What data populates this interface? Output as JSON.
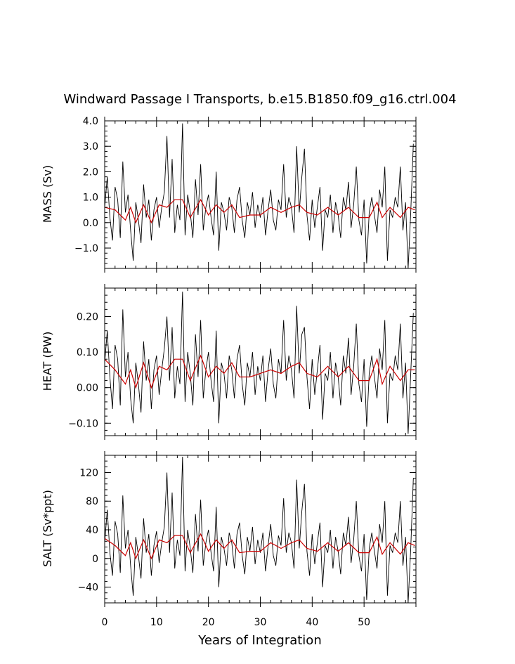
{
  "chart_data": [
    {
      "type": "line",
      "title": "Windward Passage I Transports, b.e15.B1850.f09_g16.ctrl.004",
      "xlabel": "Years of Integration",
      "ylabel": "MASS (Sv)",
      "xlim": [
        0,
        60
      ],
      "ylim": [
        -1.8,
        4.0
      ],
      "yticks": [
        -1.0,
        0.0,
        1.0,
        2.0,
        3.0,
        4.0
      ],
      "ytick_labels": [
        "−1.0",
        "0.0",
        "1.0",
        "2.0",
        "3.0",
        "4.0"
      ],
      "grid": false,
      "series": [
        {
          "color": "#000000",
          "x": [
            0.0,
            0.5,
            1.0,
            1.5,
            2.0,
            2.5,
            3.0,
            3.5,
            4.0,
            4.5,
            5.0,
            5.5,
            6.0,
            6.5,
            7.0,
            7.5,
            8.0,
            8.5,
            9.0,
            9.5,
            10.0,
            10.5,
            11.0,
            11.5,
            12.0,
            12.5,
            13.0,
            13.5,
            14.0,
            14.5,
            15.0,
            15.5,
            16.0,
            16.5,
            17.0,
            17.5,
            18.0,
            18.5,
            19.0,
            19.5,
            20.0,
            20.5,
            21.0,
            21.5,
            22.0,
            22.5,
            23.0,
            23.5,
            24.0,
            24.5,
            25.0,
            25.5,
            26.0,
            26.5,
            27.0,
            27.5,
            28.0,
            28.5,
            29.0,
            29.5,
            30.0,
            30.5,
            31.0,
            31.5,
            32.0,
            32.5,
            33.0,
            33.5,
            34.0,
            34.5,
            35.0,
            35.5,
            36.0,
            36.5,
            37.0,
            37.5,
            38.0,
            38.5,
            39.0,
            39.5,
            40.0,
            40.5,
            41.0,
            41.5,
            42.0,
            42.5,
            43.0,
            43.5,
            44.0,
            44.5,
            45.0,
            45.5,
            46.0,
            46.5,
            47.0,
            47.5,
            48.0,
            48.5,
            49.0,
            49.5,
            50.0,
            50.5,
            51.0,
            51.5,
            52.0,
            52.5,
            53.0,
            53.5,
            54.0,
            54.5,
            55.0,
            55.5,
            56.0,
            56.5,
            57.0,
            57.5,
            58.0,
            58.5,
            59.0,
            59.5
          ],
          "values": [
            0.6,
            1.8,
            0.2,
            -0.7,
            1.4,
            0.9,
            -0.6,
            2.4,
            0.4,
            1.1,
            -0.3,
            -1.5,
            0.8,
            0.1,
            -0.8,
            1.5,
            0.2,
            0.9,
            -0.7,
            0.5,
            1.0,
            -0.2,
            0.6,
            1.2,
            3.4,
            0.2,
            2.5,
            -0.4,
            0.7,
            0.1,
            3.9,
            -0.5,
            1.1,
            0.4,
            -0.6,
            1.7,
            0.3,
            2.3,
            -0.3,
            0.6,
            1.1,
            0.2,
            -0.5,
            2.0,
            -1.1,
            0.8,
            0.4,
            -0.3,
            1.0,
            0.6,
            -0.4,
            0.9,
            1.4,
            0.1,
            -0.6,
            0.8,
            0.3,
            1.2,
            -0.2,
            0.7,
            0.2,
            1.0,
            -0.5,
            0.5,
            1.3,
            0.1,
            -0.3,
            0.9,
            0.5,
            2.3,
            0.2,
            1.0,
            0.6,
            -0.4,
            3.0,
            0.4,
            1.8,
            2.9,
            0.3,
            -0.7,
            0.9,
            -0.2,
            0.6,
            1.4,
            -1.1,
            0.5,
            0.2,
            1.1,
            -0.4,
            0.8,
            0.3,
            -0.6,
            1.0,
            0.5,
            1.6,
            -0.2,
            0.7,
            2.2,
            0.1,
            -0.5,
            0.9,
            -1.6,
            0.4,
            1.0,
            0.3,
            -0.4,
            1.3,
            0.6,
            2.2,
            -1.5,
            0.5,
            0.2,
            1.0,
            0.6,
            2.2,
            -0.3,
            0.8,
            -1.8,
            0.4,
            3.1
          ]
        },
        {
          "color": "#cc0000",
          "x": [
            0,
            2,
            4,
            5,
            6,
            7.5,
            9,
            10.5,
            12,
            13.5,
            15,
            16.5,
            18.5,
            20,
            21.5,
            23,
            24.5,
            26,
            28,
            30,
            32,
            34,
            36,
            37.5,
            39,
            41,
            43,
            45,
            47,
            49,
            51,
            52.5,
            53.5,
            55,
            57,
            58.5,
            59.8
          ],
          "values": [
            0.6,
            0.5,
            0.1,
            0.6,
            0.0,
            0.7,
            0.0,
            0.7,
            0.6,
            0.9,
            0.9,
            0.2,
            0.9,
            0.3,
            0.7,
            0.4,
            0.7,
            0.2,
            0.3,
            0.3,
            0.6,
            0.4,
            0.6,
            0.7,
            0.4,
            0.3,
            0.6,
            0.3,
            0.6,
            0.2,
            0.2,
            0.8,
            0.2,
            0.6,
            0.2,
            0.6,
            0.5
          ]
        }
      ]
    },
    {
      "type": "line",
      "ylabel": "HEAT (PW)",
      "xlim": [
        0,
        60
      ],
      "ylim": [
        -0.135,
        0.28
      ],
      "yticks": [
        -0.1,
        0.0,
        0.1,
        0.2
      ],
      "ytick_labels": [
        "−0.10",
        "0.00",
        "0.10",
        "0.20"
      ],
      "grid": false,
      "series": [
        {
          "color": "#000000",
          "x": [
            0.0,
            0.5,
            1.0,
            1.5,
            2.0,
            2.5,
            3.0,
            3.5,
            4.0,
            4.5,
            5.0,
            5.5,
            6.0,
            6.5,
            7.0,
            7.5,
            8.0,
            8.5,
            9.0,
            9.5,
            10.0,
            10.5,
            11.0,
            11.5,
            12.0,
            12.5,
            13.0,
            13.5,
            14.0,
            14.5,
            15.0,
            15.5,
            16.0,
            16.5,
            17.0,
            17.5,
            18.0,
            18.5,
            19.0,
            19.5,
            20.0,
            20.5,
            21.0,
            21.5,
            22.0,
            22.5,
            23.0,
            23.5,
            24.0,
            24.5,
            25.0,
            25.5,
            26.0,
            26.5,
            27.0,
            27.5,
            28.0,
            28.5,
            29.0,
            29.5,
            30.0,
            30.5,
            31.0,
            31.5,
            32.0,
            32.5,
            33.0,
            33.5,
            34.0,
            34.5,
            35.0,
            35.5,
            36.0,
            36.5,
            37.0,
            37.5,
            38.0,
            38.5,
            39.0,
            39.5,
            40.0,
            40.5,
            41.0,
            41.5,
            42.0,
            42.5,
            43.0,
            43.5,
            44.0,
            44.5,
            45.0,
            45.5,
            46.0,
            46.5,
            47.0,
            47.5,
            48.0,
            48.5,
            49.0,
            49.5,
            50.0,
            50.5,
            51.0,
            51.5,
            52.0,
            52.5,
            53.0,
            53.5,
            54.0,
            54.5,
            55.0,
            55.5,
            56.0,
            56.5,
            57.0,
            57.5,
            58.0,
            58.5,
            59.0,
            59.5
          ],
          "values": [
            0.07,
            0.16,
            0.03,
            -0.06,
            0.12,
            0.08,
            -0.05,
            0.22,
            0.03,
            0.1,
            -0.03,
            -0.1,
            0.07,
            0.01,
            -0.07,
            0.13,
            0.02,
            0.08,
            -0.06,
            0.05,
            0.09,
            -0.02,
            0.05,
            0.11,
            0.2,
            0.02,
            0.17,
            -0.03,
            0.06,
            0.01,
            0.27,
            -0.04,
            0.1,
            0.04,
            -0.05,
            0.15,
            0.03,
            0.19,
            -0.03,
            0.05,
            0.1,
            0.02,
            -0.04,
            0.16,
            -0.1,
            0.07,
            0.04,
            -0.03,
            0.09,
            0.05,
            -0.03,
            0.08,
            0.12,
            0.01,
            -0.05,
            0.07,
            0.03,
            0.1,
            -0.02,
            0.06,
            0.02,
            0.09,
            -0.04,
            0.05,
            0.11,
            0.01,
            -0.03,
            0.08,
            0.04,
            0.19,
            0.02,
            0.09,
            0.05,
            -0.03,
            0.23,
            0.04,
            0.15,
            0.17,
            0.03,
            -0.06,
            0.08,
            -0.02,
            0.05,
            0.12,
            -0.09,
            0.04,
            0.02,
            0.1,
            -0.03,
            0.07,
            0.03,
            -0.05,
            0.09,
            0.04,
            0.14,
            -0.02,
            0.06,
            0.18,
            0.01,
            -0.04,
            0.08,
            -0.11,
            0.04,
            0.09,
            0.03,
            -0.03,
            0.11,
            0.05,
            0.19,
            -0.1,
            0.04,
            0.02,
            0.09,
            0.05,
            0.18,
            -0.03,
            0.07,
            -0.13,
            0.04,
            0.21
          ]
        },
        {
          "color": "#cc0000",
          "x": [
            0,
            2,
            4,
            5,
            6,
            7.5,
            9,
            10.5,
            12,
            13.5,
            15,
            16.5,
            18.5,
            20,
            21.5,
            23,
            24.5,
            26,
            28,
            30,
            32,
            34,
            36,
            37.5,
            39,
            41,
            43,
            45,
            47,
            49,
            51,
            52.5,
            53.5,
            55,
            57,
            58.5,
            59.8
          ],
          "values": [
            0.08,
            0.05,
            0.01,
            0.05,
            0.0,
            0.07,
            0.0,
            0.06,
            0.05,
            0.08,
            0.08,
            0.02,
            0.09,
            0.03,
            0.06,
            0.04,
            0.07,
            0.03,
            0.03,
            0.04,
            0.05,
            0.04,
            0.06,
            0.07,
            0.04,
            0.03,
            0.06,
            0.03,
            0.06,
            0.02,
            0.02,
            0.08,
            0.01,
            0.06,
            0.02,
            0.05,
            0.05
          ]
        }
      ]
    },
    {
      "type": "line",
      "ylabel": "SALT (Sv*ppt)",
      "xlabel": "Years of Integration",
      "xlim": [
        0,
        60
      ],
      "ylim": [
        -62,
        144
      ],
      "yticks": [
        -40,
        0,
        40,
        80,
        120
      ],
      "ytick_labels": [
        "−40",
        "0",
        "40",
        "80",
        "120"
      ],
      "xticks": [
        0,
        10,
        20,
        30,
        40,
        50
      ],
      "xtick_labels": [
        "0",
        "10",
        "20",
        "30",
        "40",
        "50"
      ],
      "grid": false,
      "series": [
        {
          "color": "#000000",
          "x": [
            0.0,
            0.5,
            1.0,
            1.5,
            2.0,
            2.5,
            3.0,
            3.5,
            4.0,
            4.5,
            5.0,
            5.5,
            6.0,
            6.5,
            7.0,
            7.5,
            8.0,
            8.5,
            9.0,
            9.5,
            10.0,
            10.5,
            11.0,
            11.5,
            12.0,
            12.5,
            13.0,
            13.5,
            14.0,
            14.5,
            15.0,
            15.5,
            16.0,
            16.5,
            17.0,
            17.5,
            18.0,
            18.5,
            19.0,
            19.5,
            20.0,
            20.5,
            21.0,
            21.5,
            22.0,
            22.5,
            23.0,
            23.5,
            24.0,
            24.5,
            25.0,
            25.5,
            26.0,
            26.5,
            27.0,
            27.5,
            28.0,
            28.5,
            29.0,
            29.5,
            30.0,
            30.5,
            31.0,
            31.5,
            32.0,
            32.5,
            33.0,
            33.5,
            34.0,
            34.5,
            35.0,
            35.5,
            36.0,
            36.5,
            37.0,
            37.5,
            38.0,
            38.5,
            39.0,
            39.5,
            40.0,
            40.5,
            41.0,
            41.5,
            42.0,
            42.5,
            43.0,
            43.5,
            44.0,
            44.5,
            45.0,
            45.5,
            46.0,
            46.5,
            47.0,
            47.5,
            48.0,
            48.5,
            49.0,
            49.5,
            50.0,
            50.5,
            51.0,
            51.5,
            52.0,
            52.5,
            53.0,
            53.5,
            54.0,
            54.5,
            55.0,
            55.5,
            56.0,
            56.5,
            57.0,
            57.5,
            58.0,
            58.5,
            59.0,
            59.5
          ],
          "values": [
            22,
            68,
            8,
            -24,
            52,
            34,
            -20,
            88,
            14,
            40,
            -10,
            -52,
            30,
            4,
            -28,
            56,
            8,
            34,
            -24,
            18,
            38,
            -6,
            22,
            44,
            120,
            8,
            92,
            -14,
            26,
            4,
            142,
            -18,
            40,
            14,
            -20,
            62,
            10,
            82,
            -10,
            22,
            40,
            8,
            -18,
            72,
            -40,
            30,
            14,
            -10,
            36,
            22,
            -14,
            34,
            50,
            4,
            -22,
            30,
            10,
            44,
            -8,
            26,
            8,
            36,
            -18,
            18,
            48,
            4,
            -10,
            32,
            18,
            84,
            8,
            36,
            22,
            -14,
            110,
            14,
            66,
            104,
            10,
            -24,
            34,
            -8,
            22,
            50,
            -40,
            18,
            8,
            40,
            -14,
            30,
            10,
            -22,
            36,
            18,
            58,
            -6,
            26,
            80,
            4,
            -18,
            34,
            -58,
            14,
            36,
            10,
            -14,
            48,
            22,
            80,
            -52,
            18,
            8,
            36,
            22,
            80,
            -10,
            30,
            -62,
            14,
            112
          ]
        },
        {
          "color": "#cc0000",
          "x": [
            0,
            2,
            4,
            5,
            6,
            7.5,
            9,
            10.5,
            12,
            13.5,
            15,
            16.5,
            18.5,
            20,
            21.5,
            23,
            24.5,
            26,
            28,
            30,
            32,
            34,
            36,
            37.5,
            39,
            41,
            43,
            45,
            47,
            49,
            51,
            52.5,
            53.5,
            55,
            57,
            58.5,
            59.8
          ],
          "values": [
            28,
            18,
            4,
            22,
            0,
            26,
            0,
            26,
            22,
            32,
            32,
            8,
            34,
            10,
            26,
            14,
            26,
            8,
            10,
            10,
            22,
            14,
            22,
            26,
            14,
            10,
            22,
            10,
            22,
            8,
            8,
            30,
            6,
            22,
            6,
            22,
            18
          ]
        }
      ]
    }
  ]
}
